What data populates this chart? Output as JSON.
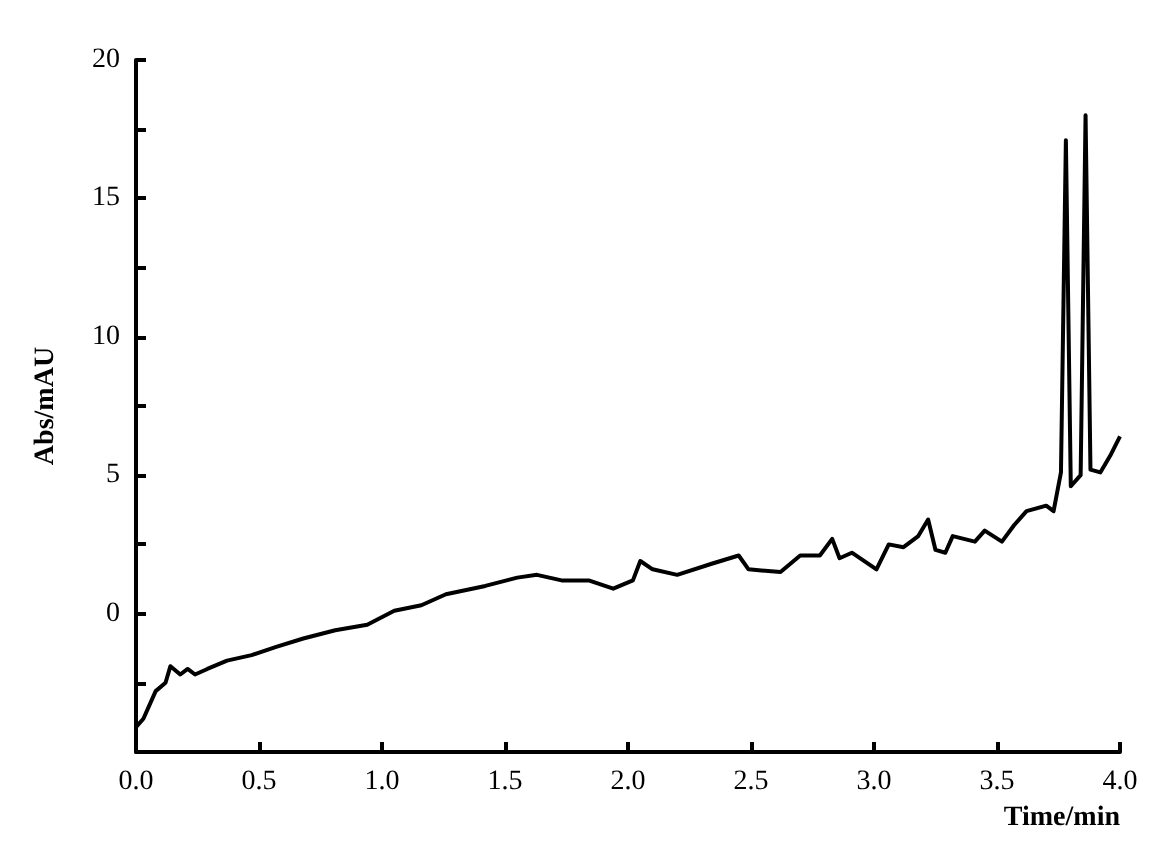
{
  "chart_data": {
    "type": "line",
    "xlabel": "Time/min",
    "ylabel": "Abs/mAU",
    "xlim": [
      0,
      4
    ],
    "xticks": [
      {
        "value": 0,
        "label": "0.0"
      },
      {
        "value": 0.5,
        "label": "0.5"
      },
      {
        "value": 1,
        "label": "1.0"
      },
      {
        "value": 1.5,
        "label": "1.5"
      },
      {
        "value": 2,
        "label": "2.0"
      },
      {
        "value": 2.5,
        "label": "2.5"
      },
      {
        "value": 3,
        "label": "3.0"
      },
      {
        "value": 3.5,
        "label": "3.5"
      },
      {
        "value": 4,
        "label": "4.0"
      }
    ],
    "ylim": [
      -5,
      20
    ],
    "yticks": [
      {
        "value": -5,
        "label": null
      },
      {
        "value": -2.5,
        "label": null
      },
      0,
      {
        "value": 2.5,
        "label": null
      },
      5,
      {
        "value": 7.5,
        "label": null
      },
      10,
      {
        "value": 12.5,
        "label": null
      },
      15,
      {
        "value": 17.5,
        "label": null
      },
      20
    ],
    "grid": false,
    "marker": "none",
    "line_style": "solid",
    "series": [
      {
        "color": "#000000",
        "x": [
          0,
          0.03,
          0.08,
          0.12,
          0.14,
          0.18,
          0.21,
          0.24,
          0.29,
          0.37,
          0.47,
          0.57,
          0.68,
          0.81,
          0.94,
          1.05,
          1.16,
          1.26,
          1.42,
          1.55,
          1.63,
          1.73,
          1.84,
          1.94,
          2.02,
          2.05,
          2.1,
          2.2,
          2.34,
          2.45,
          2.49,
          2.62,
          2.7,
          2.78,
          2.83,
          2.86,
          2.91,
          3.01,
          3.06,
          3.12,
          3.18,
          3.22,
          3.25,
          3.29,
          3.32,
          3.41,
          3.45,
          3.52,
          3.57,
          3.62,
          3.7,
          3.73,
          3.76,
          3.78,
          3.8,
          3.84,
          3.86,
          3.88,
          3.92,
          3.96,
          4.0
        ],
        "values": [
          -4.1,
          -3.8,
          -2.8,
          -2.5,
          -1.9,
          -2.2,
          -2.0,
          -2.2,
          -2.0,
          -1.7,
          -1.5,
          -1.2,
          -0.9,
          -0.6,
          -0.4,
          0.1,
          0.3,
          0.7,
          1.0,
          1.3,
          1.4,
          1.2,
          1.2,
          0.9,
          1.2,
          1.9,
          1.6,
          1.4,
          1.8,
          2.1,
          1.6,
          1.5,
          2.1,
          2.1,
          2.7,
          2.0,
          2.2,
          1.6,
          2.5,
          2.4,
          2.8,
          3.4,
          2.3,
          2.2,
          2.8,
          2.6,
          3.0,
          2.6,
          3.2,
          3.7,
          3.9,
          3.7,
          5.1,
          17.1,
          4.6,
          5.0,
          18.0,
          5.2,
          5.1,
          5.7,
          6.4
        ]
      }
    ]
  }
}
